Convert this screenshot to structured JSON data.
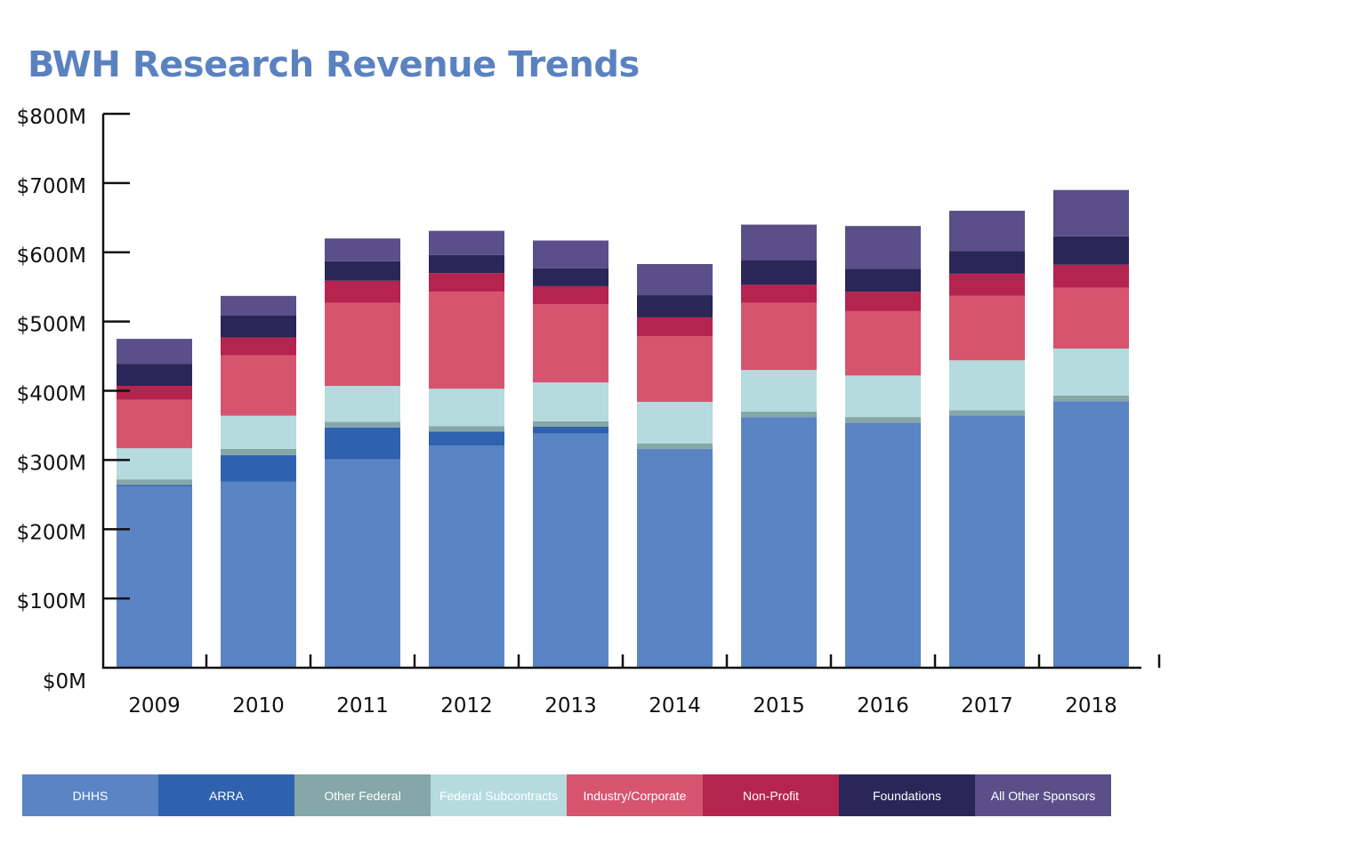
{
  "chart_data": {
    "type": "bar",
    "stacked": true,
    "title": "BWH Research Revenue Trends",
    "xlabel": "",
    "ylabel": "",
    "ylim": [
      0,
      800
    ],
    "y_ticks": [
      "$0M",
      "$100M",
      "$200M",
      "$300M",
      "$400M",
      "$500M",
      "$600M",
      "$700M",
      "$800M"
    ],
    "grid": false,
    "legend_position": "bottom",
    "categories": [
      "2009",
      "2010",
      "2011",
      "2012",
      "2013",
      "2014",
      "2015",
      "2016",
      "2017",
      "2018"
    ],
    "series": [
      {
        "name": "DHHS",
        "color": "#5b84c4",
        "values": [
          262,
          269,
          301,
          321,
          338,
          316,
          362,
          354,
          364,
          385
        ]
      },
      {
        "name": "ARRA",
        "color": "#2f62ae",
        "values": [
          2,
          38,
          46,
          20,
          10,
          0,
          0,
          0,
          0,
          0
        ]
      },
      {
        "name": "Other Federal",
        "color": "#85a7a7",
        "values": [
          8,
          9,
          8,
          8,
          8,
          8,
          8,
          8,
          8,
          8
        ]
      },
      {
        "name": "Federal Subcontracts",
        "color": "#b5dbdf",
        "values": [
          45,
          48,
          52,
          54,
          56,
          60,
          60,
          60,
          72,
          68
        ]
      },
      {
        "name": "Industry/Corporate",
        "color": "#d6546e",
        "values": [
          70,
          87,
          120,
          140,
          113,
          95,
          97,
          93,
          93,
          88
        ]
      },
      {
        "name": "Non-Profit",
        "color": "#b5244e",
        "values": [
          20,
          26,
          32,
          27,
          26,
          27,
          26,
          28,
          32,
          33
        ]
      },
      {
        "name": "Foundations",
        "color": "#2a2657",
        "values": [
          32,
          32,
          28,
          26,
          26,
          32,
          36,
          33,
          33,
          41
        ]
      },
      {
        "name": "All Other Sponsors",
        "color": "#5a4f88",
        "values": [
          36,
          28,
          33,
          35,
          40,
          45,
          51,
          62,
          58,
          67
        ]
      }
    ]
  }
}
